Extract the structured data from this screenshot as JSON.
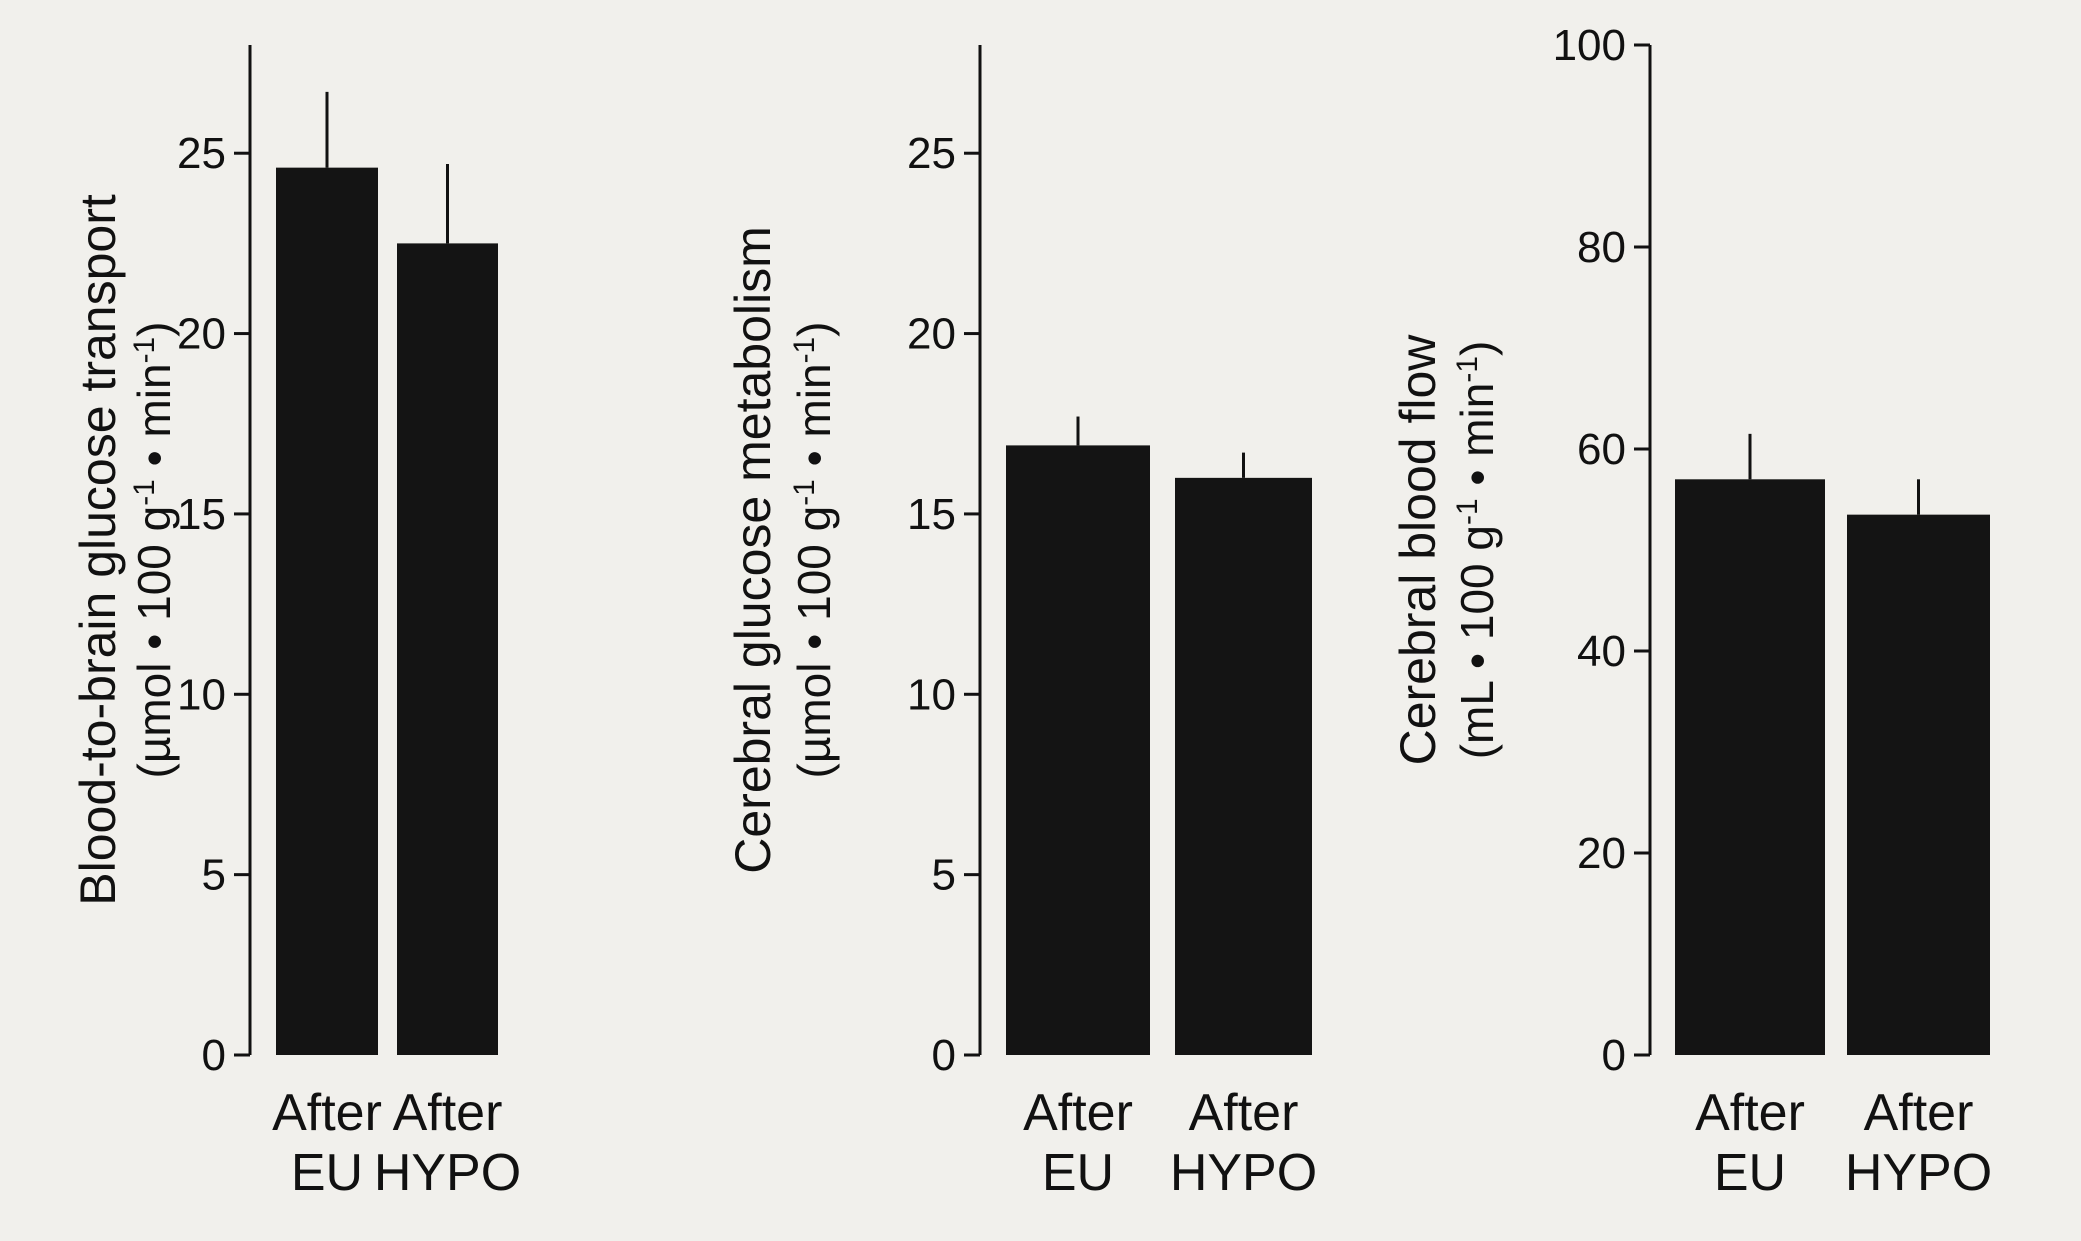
{
  "chart_data": [
    {
      "type": "bar",
      "categories": [
        [
          "After",
          "EU"
        ],
        [
          "After",
          "HYPO"
        ]
      ],
      "values": [
        24.6,
        22.5
      ],
      "errors": [
        2.1,
        2.2
      ],
      "ylabel_line1": "Blood-to-brain glucose transport",
      "ylabel_line2": "(µmol • 100 g-1 • min-1)",
      "ylim": [
        0,
        28
      ],
      "yticks": [
        0,
        5,
        10,
        15,
        20,
        25
      ]
    },
    {
      "type": "bar",
      "categories": [
        [
          "After",
          "EU"
        ],
        [
          "After",
          "HYPO"
        ]
      ],
      "values": [
        16.9,
        16.0
      ],
      "errors": [
        0.8,
        0.7
      ],
      "ylabel_line1": "Cerebral glucose metabolism",
      "ylabel_line2": "(µmol • 100 g-1 • min-1)",
      "ylim": [
        0,
        28
      ],
      "yticks": [
        0,
        5,
        10,
        15,
        20,
        25
      ]
    },
    {
      "type": "bar",
      "categories": [
        [
          "After",
          "EU"
        ],
        [
          "After",
          "HYPO"
        ]
      ],
      "values": [
        57,
        53.5
      ],
      "errors": [
        4.5,
        3.5
      ],
      "ylabel_line1": "Cerebral blood flow",
      "ylabel_line2": "(mL • 100 g-1 • min-1)",
      "ylim": [
        0,
        100
      ],
      "yticks": [
        0,
        20,
        40,
        60,
        80,
        100
      ]
    }
  ],
  "colors": {
    "bar": "#141414",
    "axis": "#111111",
    "text": "#111111"
  }
}
